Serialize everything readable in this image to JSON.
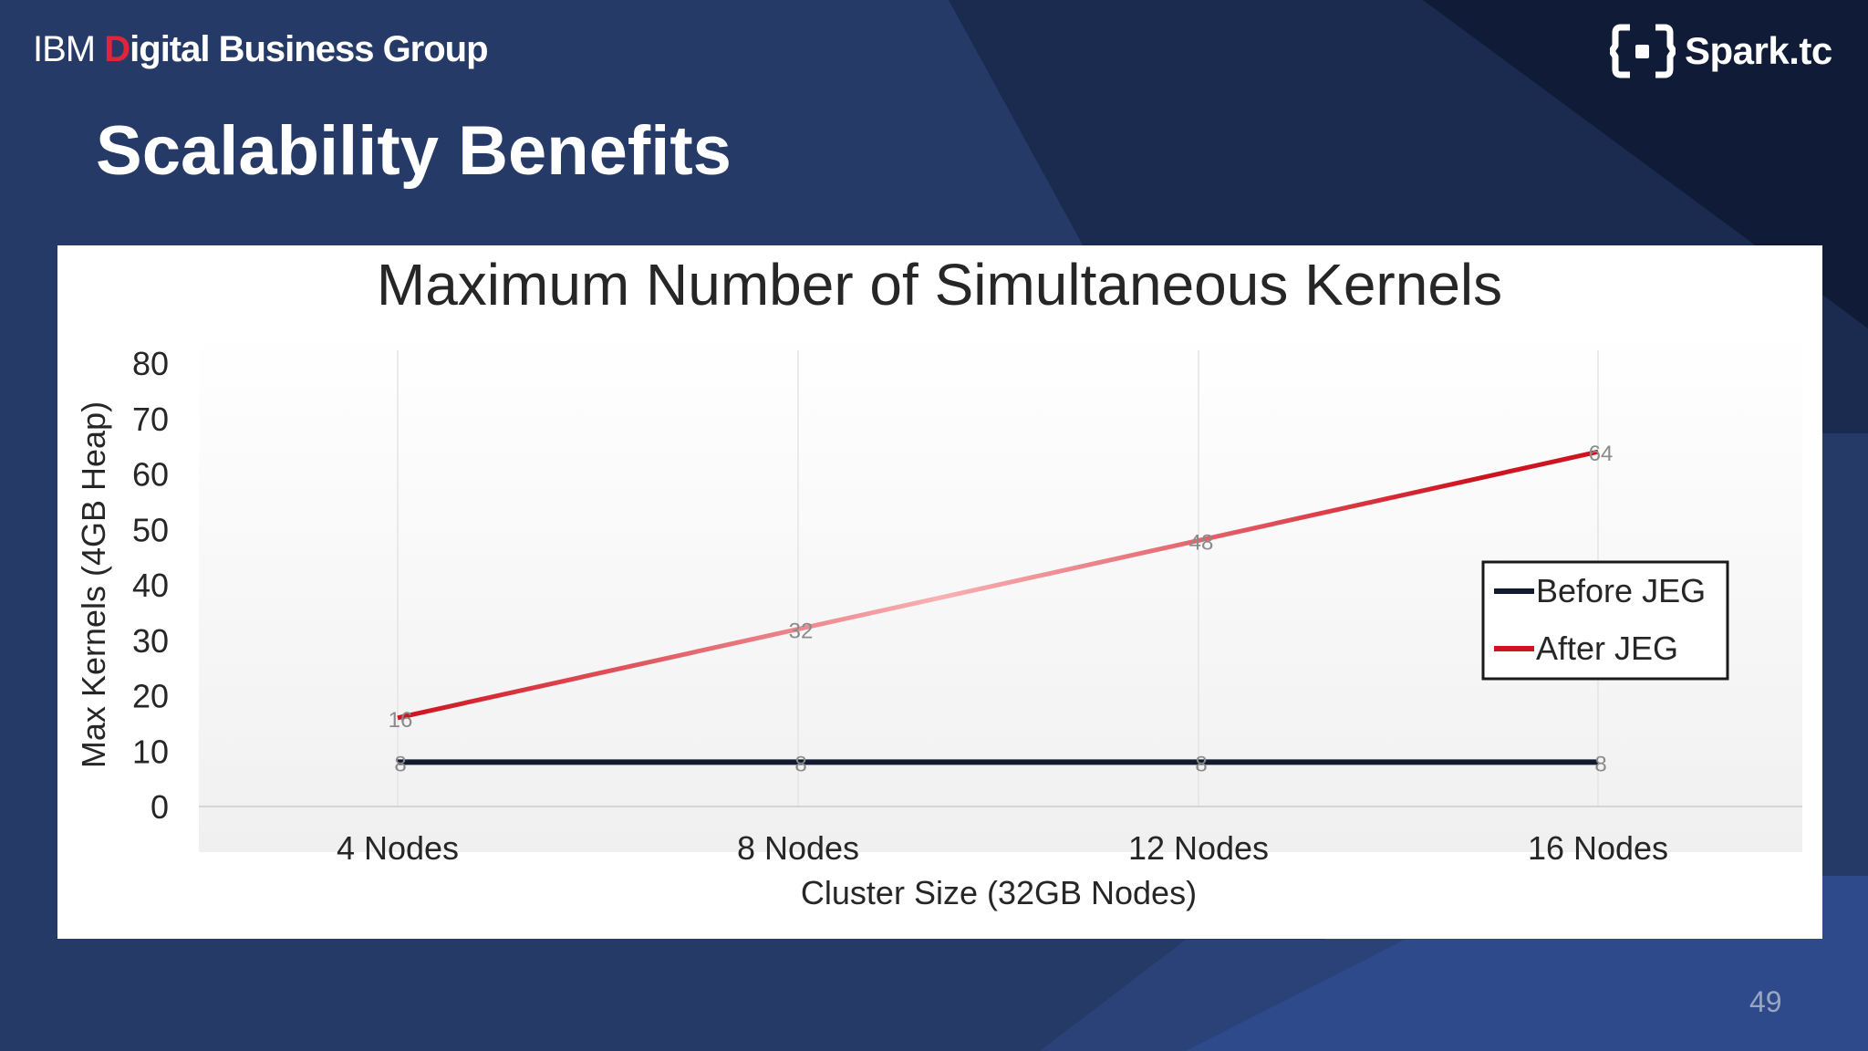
{
  "header": {
    "brand_ibm": "IBM",
    "brand_digital_initial": "D",
    "brand_digital_rest": "igital",
    "brand_rest": " Business Group",
    "spark_logo": "Spark.tc"
  },
  "slide": {
    "title": "Scalability Benefits",
    "page_number": "49"
  },
  "colors": {
    "accent_red": "#e0253b",
    "bg_blue": "#263a67",
    "before_line": "#111a2e",
    "after_line": "#e0323b"
  },
  "icons": {
    "spark": "bracket-dot-logo-icon"
  },
  "chart_data": {
    "type": "line",
    "title": "Maximum Number of Simultaneous Kernels",
    "xlabel": "Cluster Size (32GB Nodes)",
    "ylabel": "Max Kernels (4GB Heap)",
    "categories": [
      "4 Nodes",
      "8 Nodes",
      "12 Nodes",
      "16 Nodes"
    ],
    "ylim": [
      0,
      80
    ],
    "yticks": [
      0,
      10,
      20,
      30,
      40,
      50,
      60,
      70,
      80
    ],
    "series": [
      {
        "name": "Before JEG",
        "values": [
          8,
          8,
          8,
          8
        ],
        "color": "#111a2e"
      },
      {
        "name": "After JEG",
        "values": [
          16,
          32,
          48,
          64
        ],
        "color": "#e0323b"
      }
    ],
    "legend": "right",
    "grid": "vertical"
  }
}
